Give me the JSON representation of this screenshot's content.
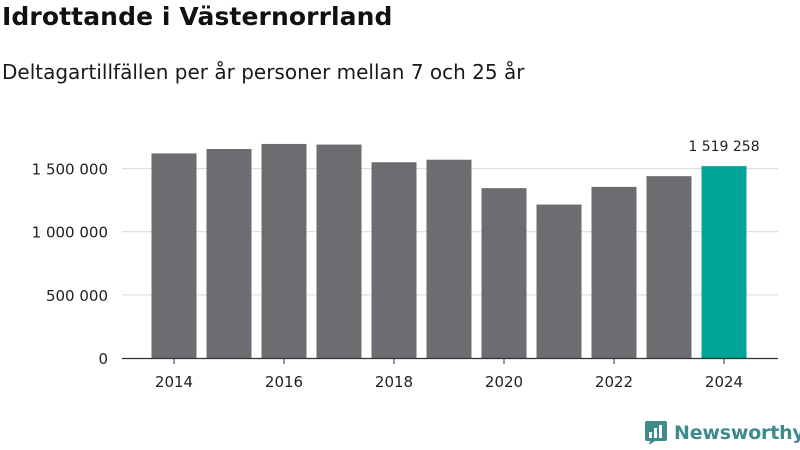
{
  "title": "Idrottande i Västernorrland",
  "subtitle": "Deltagartillfällen per år personer mellan 7 och 25 år",
  "brand": {
    "name": "Newsworthy",
    "color": "#3d8b8d",
    "icon": "bar-chart-logo-icon"
  },
  "colors": {
    "bar": "#6d6c71",
    "highlight": "#00a398",
    "grid": "#d9d9d9"
  },
  "chart_data": {
    "type": "bar",
    "categories": [
      "2014",
      "2015",
      "2016",
      "2017",
      "2018",
      "2019",
      "2020",
      "2021",
      "2022",
      "2023",
      "2024"
    ],
    "values": [
      1620000,
      1655000,
      1695000,
      1690000,
      1550000,
      1570000,
      1345000,
      1215000,
      1355000,
      1440000,
      1519258
    ],
    "highlight_index": 10,
    "annotation": "1 519 258",
    "x_ticks": [
      "2014",
      "2016",
      "2018",
      "2020",
      "2022",
      "2024"
    ],
    "y_ticks": [
      0,
      500000,
      1000000,
      1500000
    ],
    "y_tick_labels": [
      "0",
      "500 000",
      "1 000 000",
      "1 500 000"
    ],
    "ylim": [
      0,
      1750000
    ],
    "grid": true,
    "legend": "none"
  }
}
